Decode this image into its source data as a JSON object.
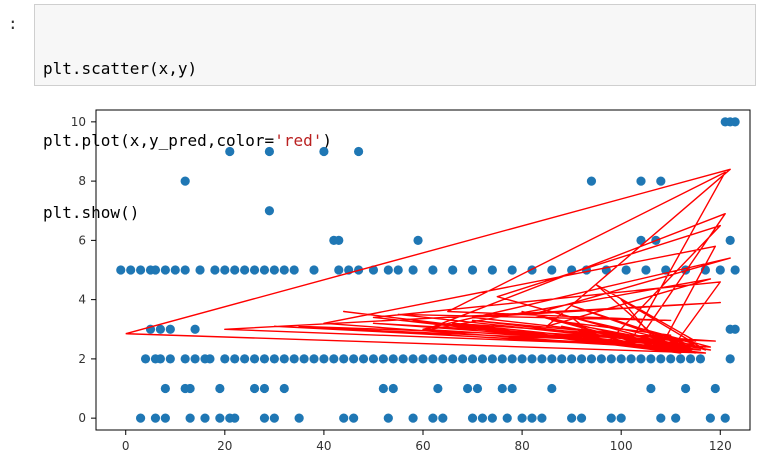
{
  "cell": {
    "prompt": ":",
    "code_lines": [
      {
        "a": "plt.scatter(x,y)",
        "str": "",
        "b": ""
      },
      {
        "a": "plt.plot(x,y_pred,color=",
        "str": "'red'",
        "b": ")"
      },
      {
        "a": "plt.show()",
        "str": "",
        "b": ""
      }
    ]
  },
  "chart_data": {
    "type": "scatter",
    "title": "",
    "xlabel": "",
    "ylabel": "",
    "xlim": [
      -6,
      126
    ],
    "ylim": [
      -0.4,
      10.4
    ],
    "xticks": [
      0,
      20,
      40,
      60,
      80,
      100,
      120
    ],
    "yticks": [
      0,
      2,
      4,
      6,
      8,
      10
    ],
    "grid": false,
    "series": [
      {
        "kind": "scatter",
        "color": "#1f77b4",
        "points": [
          [
            3,
            0
          ],
          [
            6,
            0
          ],
          [
            8,
            0
          ],
          [
            13,
            0
          ],
          [
            16,
            0
          ],
          [
            19,
            0
          ],
          [
            21,
            0
          ],
          [
            22,
            0
          ],
          [
            28,
            0
          ],
          [
            30,
            0
          ],
          [
            35,
            0
          ],
          [
            44,
            0
          ],
          [
            46,
            0
          ],
          [
            53,
            0
          ],
          [
            58,
            0
          ],
          [
            62,
            0
          ],
          [
            64,
            0
          ],
          [
            70,
            0
          ],
          [
            72,
            0
          ],
          [
            74,
            0
          ],
          [
            77,
            0
          ],
          [
            80,
            0
          ],
          [
            82,
            0
          ],
          [
            84,
            0
          ],
          [
            90,
            0
          ],
          [
            92,
            0
          ],
          [
            98,
            0
          ],
          [
            100,
            0
          ],
          [
            108,
            0
          ],
          [
            111,
            0
          ],
          [
            118,
            0
          ],
          [
            121,
            0
          ],
          [
            8,
            1
          ],
          [
            12,
            1
          ],
          [
            13,
            1
          ],
          [
            19,
            1
          ],
          [
            26,
            1
          ],
          [
            28,
            1
          ],
          [
            32,
            1
          ],
          [
            52,
            1
          ],
          [
            54,
            1
          ],
          [
            63,
            1
          ],
          [
            69,
            1
          ],
          [
            71,
            1
          ],
          [
            76,
            1
          ],
          [
            78,
            1
          ],
          [
            86,
            1
          ],
          [
            106,
            1
          ],
          [
            113,
            1
          ],
          [
            119,
            1
          ],
          [
            4,
            2
          ],
          [
            6,
            2
          ],
          [
            7,
            2
          ],
          [
            9,
            2
          ],
          [
            12,
            2
          ],
          [
            14,
            2
          ],
          [
            16,
            2
          ],
          [
            17,
            2
          ],
          [
            20,
            2
          ],
          [
            22,
            2
          ],
          [
            24,
            2
          ],
          [
            26,
            2
          ],
          [
            28,
            2
          ],
          [
            30,
            2
          ],
          [
            32,
            2
          ],
          [
            34,
            2
          ],
          [
            36,
            2
          ],
          [
            38,
            2
          ],
          [
            40,
            2
          ],
          [
            42,
            2
          ],
          [
            44,
            2
          ],
          [
            46,
            2
          ],
          [
            48,
            2
          ],
          [
            50,
            2
          ],
          [
            52,
            2
          ],
          [
            54,
            2
          ],
          [
            56,
            2
          ],
          [
            58,
            2
          ],
          [
            60,
            2
          ],
          [
            62,
            2
          ],
          [
            64,
            2
          ],
          [
            66,
            2
          ],
          [
            68,
            2
          ],
          [
            70,
            2
          ],
          [
            72,
            2
          ],
          [
            74,
            2
          ],
          [
            76,
            2
          ],
          [
            78,
            2
          ],
          [
            80,
            2
          ],
          [
            82,
            2
          ],
          [
            84,
            2
          ],
          [
            86,
            2
          ],
          [
            88,
            2
          ],
          [
            90,
            2
          ],
          [
            92,
            2
          ],
          [
            94,
            2
          ],
          [
            96,
            2
          ],
          [
            98,
            2
          ],
          [
            100,
            2
          ],
          [
            102,
            2
          ],
          [
            104,
            2
          ],
          [
            106,
            2
          ],
          [
            108,
            2
          ],
          [
            110,
            2
          ],
          [
            112,
            2
          ],
          [
            114,
            2
          ],
          [
            116,
            2
          ],
          [
            122,
            2
          ],
          [
            5,
            3
          ],
          [
            7,
            3
          ],
          [
            9,
            3
          ],
          [
            14,
            3
          ],
          [
            122,
            3
          ],
          [
            123,
            3
          ],
          [
            -1,
            5
          ],
          [
            1,
            5
          ],
          [
            3,
            5
          ],
          [
            5,
            5
          ],
          [
            6,
            5
          ],
          [
            8,
            5
          ],
          [
            10,
            5
          ],
          [
            12,
            5
          ],
          [
            15,
            5
          ],
          [
            18,
            5
          ],
          [
            20,
            5
          ],
          [
            22,
            5
          ],
          [
            24,
            5
          ],
          [
            26,
            5
          ],
          [
            28,
            5
          ],
          [
            30,
            5
          ],
          [
            32,
            5
          ],
          [
            34,
            5
          ],
          [
            38,
            5
          ],
          [
            43,
            5
          ],
          [
            45,
            5
          ],
          [
            47,
            5
          ],
          [
            50,
            5
          ],
          [
            53,
            5
          ],
          [
            55,
            5
          ],
          [
            58,
            5
          ],
          [
            62,
            5
          ],
          [
            66,
            5
          ],
          [
            70,
            5
          ],
          [
            74,
            5
          ],
          [
            78,
            5
          ],
          [
            82,
            5
          ],
          [
            86,
            5
          ],
          [
            90,
            5
          ],
          [
            93,
            5
          ],
          [
            97,
            5
          ],
          [
            101,
            5
          ],
          [
            105,
            5
          ],
          [
            109,
            5
          ],
          [
            113,
            5
          ],
          [
            117,
            5
          ],
          [
            120,
            5
          ],
          [
            123,
            5
          ],
          [
            42,
            6
          ],
          [
            43,
            6
          ],
          [
            59,
            6
          ],
          [
            104,
            6
          ],
          [
            107,
            6
          ],
          [
            122,
            6
          ],
          [
            29,
            7
          ],
          [
            12,
            8
          ],
          [
            94,
            8
          ],
          [
            104,
            8
          ],
          [
            108,
            8
          ],
          [
            21,
            9
          ],
          [
            29,
            9
          ],
          [
            40,
            9
          ],
          [
            47,
            9
          ],
          [
            121,
            10
          ],
          [
            122,
            10
          ],
          [
            123,
            10
          ]
        ]
      },
      {
        "kind": "line",
        "color": "#ff0000",
        "points": [
          [
            0,
            2.85
          ],
          [
            122,
            8.4
          ],
          [
            85,
            3.1
          ],
          [
            118,
            4.7
          ],
          [
            60,
            2.95
          ],
          [
            121,
            6.9
          ],
          [
            105,
            3.0
          ],
          [
            115,
            2.2
          ],
          [
            50,
            3.4
          ],
          [
            120,
            4.6
          ],
          [
            110,
            2.3
          ],
          [
            95,
            4.5
          ],
          [
            115,
            2.6
          ],
          [
            70,
            3.3
          ],
          [
            112,
            2.5
          ],
          [
            90,
            3.8
          ],
          [
            117,
            2.3
          ],
          [
            100,
            4.0
          ],
          [
            108,
            2.4
          ],
          [
            119,
            5.8
          ],
          [
            40,
            3.2
          ],
          [
            113,
            2.3
          ],
          [
            80,
            3.6
          ],
          [
            102,
            2.6
          ],
          [
            121,
            8.3
          ],
          [
            65,
            3.6
          ],
          [
            110,
            3.3
          ],
          [
            55,
            3.5
          ],
          [
            116,
            2.4
          ],
          [
            90,
            3.4
          ],
          [
            97,
            2.5
          ],
          [
            120,
            6.5
          ],
          [
            75,
            4.1
          ],
          [
            114,
            2.3
          ],
          [
            88,
            3.1
          ],
          [
            108,
            2.3
          ],
          [
            44,
            3.6
          ],
          [
            112,
            2.2
          ],
          [
            82,
            3.5
          ],
          [
            122,
            5.4
          ],
          [
            60,
            3.0
          ],
          [
            118,
            2.4
          ],
          [
            100,
            3.2
          ],
          [
            115,
            2.5
          ],
          [
            30,
            3.1
          ],
          [
            111,
            2.4
          ],
          [
            78,
            2.7
          ],
          [
            110,
            2.8
          ],
          [
            86,
            3.3
          ],
          [
            118,
            2.3
          ],
          [
            96,
            2.9
          ],
          [
            114,
            2.4
          ],
          [
            20,
            3.0
          ],
          [
            120,
            3.9
          ],
          [
            70,
            3.4
          ],
          [
            113,
            2.6
          ],
          [
            50,
            3.2
          ],
          [
            117,
            2.4
          ],
          [
            104,
            2.6
          ],
          [
            116,
            2.3
          ],
          [
            35,
            3.1
          ],
          [
            119,
            2.6
          ],
          [
            66,
            3.2
          ],
          [
            112,
            2.4
          ],
          [
            92,
            3.0
          ],
          [
            114,
            2.3
          ],
          [
            58,
            3.3
          ],
          [
            117,
            2.2
          ],
          [
            0,
            2.85
          ]
        ]
      }
    ]
  }
}
